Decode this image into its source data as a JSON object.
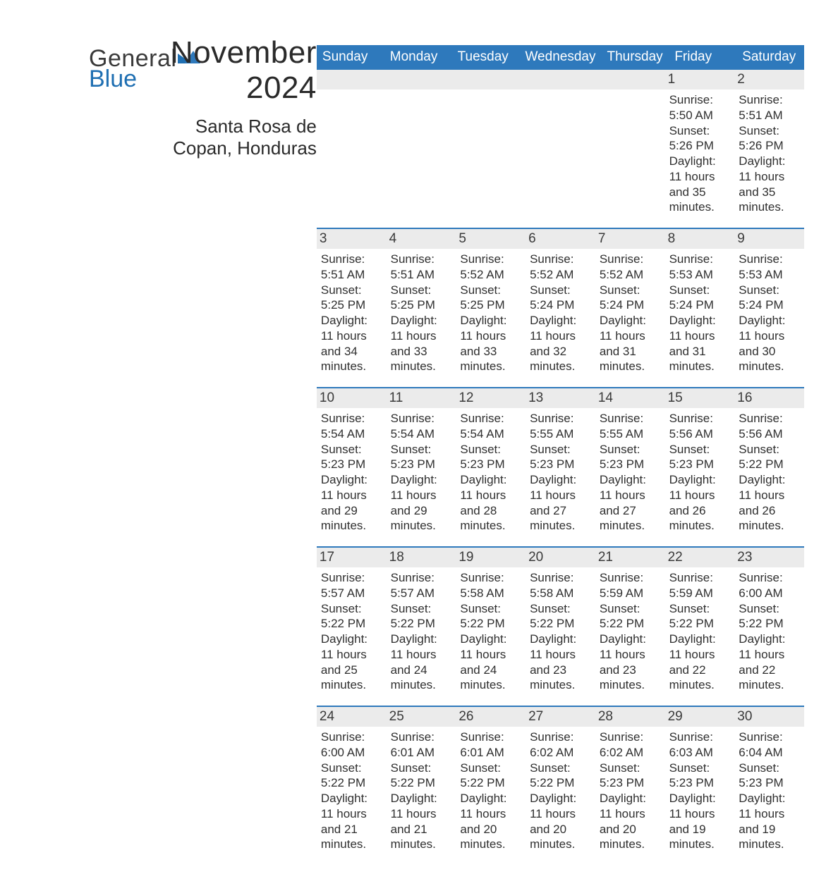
{
  "logo": {
    "text1": "General",
    "text2": "Blue",
    "accent_color": "#1f6fb2",
    "text_color": "#3a3a3a"
  },
  "title": "November 2024",
  "location": "Santa Rosa de Copan, Honduras",
  "colors": {
    "header_bg": "#2e79bc",
    "header_text": "#ffffff",
    "daynum_bg": "#ebebeb",
    "row_border": "#2e79bc",
    "body_text": "#2f2f2f",
    "page_bg": "#ffffff"
  },
  "typography": {
    "title_fontsize": 44,
    "location_fontsize": 26,
    "dow_fontsize": 19,
    "daynum_fontsize": 19,
    "body_fontsize": 17
  },
  "day_labels": [
    "Sunday",
    "Monday",
    "Tuesday",
    "Wednesday",
    "Thursday",
    "Friday",
    "Saturday"
  ],
  "weeks": [
    [
      {
        "n": "",
        "sunrise": "",
        "sunset": "",
        "daylight": ""
      },
      {
        "n": "",
        "sunrise": "",
        "sunset": "",
        "daylight": ""
      },
      {
        "n": "",
        "sunrise": "",
        "sunset": "",
        "daylight": ""
      },
      {
        "n": "",
        "sunrise": "",
        "sunset": "",
        "daylight": ""
      },
      {
        "n": "",
        "sunrise": "",
        "sunset": "",
        "daylight": ""
      },
      {
        "n": "1",
        "sunrise": "Sunrise: 5:50 AM",
        "sunset": "Sunset: 5:26 PM",
        "daylight": "Daylight: 11 hours and 35 minutes."
      },
      {
        "n": "2",
        "sunrise": "Sunrise: 5:51 AM",
        "sunset": "Sunset: 5:26 PM",
        "daylight": "Daylight: 11 hours and 35 minutes."
      }
    ],
    [
      {
        "n": "3",
        "sunrise": "Sunrise: 5:51 AM",
        "sunset": "Sunset: 5:25 PM",
        "daylight": "Daylight: 11 hours and 34 minutes."
      },
      {
        "n": "4",
        "sunrise": "Sunrise: 5:51 AM",
        "sunset": "Sunset: 5:25 PM",
        "daylight": "Daylight: 11 hours and 33 minutes."
      },
      {
        "n": "5",
        "sunrise": "Sunrise: 5:52 AM",
        "sunset": "Sunset: 5:25 PM",
        "daylight": "Daylight: 11 hours and 33 minutes."
      },
      {
        "n": "6",
        "sunrise": "Sunrise: 5:52 AM",
        "sunset": "Sunset: 5:24 PM",
        "daylight": "Daylight: 11 hours and 32 minutes."
      },
      {
        "n": "7",
        "sunrise": "Sunrise: 5:52 AM",
        "sunset": "Sunset: 5:24 PM",
        "daylight": "Daylight: 11 hours and 31 minutes."
      },
      {
        "n": "8",
        "sunrise": "Sunrise: 5:53 AM",
        "sunset": "Sunset: 5:24 PM",
        "daylight": "Daylight: 11 hours and 31 minutes."
      },
      {
        "n": "9",
        "sunrise": "Sunrise: 5:53 AM",
        "sunset": "Sunset: 5:24 PM",
        "daylight": "Daylight: 11 hours and 30 minutes."
      }
    ],
    [
      {
        "n": "10",
        "sunrise": "Sunrise: 5:54 AM",
        "sunset": "Sunset: 5:23 PM",
        "daylight": "Daylight: 11 hours and 29 minutes."
      },
      {
        "n": "11",
        "sunrise": "Sunrise: 5:54 AM",
        "sunset": "Sunset: 5:23 PM",
        "daylight": "Daylight: 11 hours and 29 minutes."
      },
      {
        "n": "12",
        "sunrise": "Sunrise: 5:54 AM",
        "sunset": "Sunset: 5:23 PM",
        "daylight": "Daylight: 11 hours and 28 minutes."
      },
      {
        "n": "13",
        "sunrise": "Sunrise: 5:55 AM",
        "sunset": "Sunset: 5:23 PM",
        "daylight": "Daylight: 11 hours and 27 minutes."
      },
      {
        "n": "14",
        "sunrise": "Sunrise: 5:55 AM",
        "sunset": "Sunset: 5:23 PM",
        "daylight": "Daylight: 11 hours and 27 minutes."
      },
      {
        "n": "15",
        "sunrise": "Sunrise: 5:56 AM",
        "sunset": "Sunset: 5:23 PM",
        "daylight": "Daylight: 11 hours and 26 minutes."
      },
      {
        "n": "16",
        "sunrise": "Sunrise: 5:56 AM",
        "sunset": "Sunset: 5:22 PM",
        "daylight": "Daylight: 11 hours and 26 minutes."
      }
    ],
    [
      {
        "n": "17",
        "sunrise": "Sunrise: 5:57 AM",
        "sunset": "Sunset: 5:22 PM",
        "daylight": "Daylight: 11 hours and 25 minutes."
      },
      {
        "n": "18",
        "sunrise": "Sunrise: 5:57 AM",
        "sunset": "Sunset: 5:22 PM",
        "daylight": "Daylight: 11 hours and 24 minutes."
      },
      {
        "n": "19",
        "sunrise": "Sunrise: 5:58 AM",
        "sunset": "Sunset: 5:22 PM",
        "daylight": "Daylight: 11 hours and 24 minutes."
      },
      {
        "n": "20",
        "sunrise": "Sunrise: 5:58 AM",
        "sunset": "Sunset: 5:22 PM",
        "daylight": "Daylight: 11 hours and 23 minutes."
      },
      {
        "n": "21",
        "sunrise": "Sunrise: 5:59 AM",
        "sunset": "Sunset: 5:22 PM",
        "daylight": "Daylight: 11 hours and 23 minutes."
      },
      {
        "n": "22",
        "sunrise": "Sunrise: 5:59 AM",
        "sunset": "Sunset: 5:22 PM",
        "daylight": "Daylight: 11 hours and 22 minutes."
      },
      {
        "n": "23",
        "sunrise": "Sunrise: 6:00 AM",
        "sunset": "Sunset: 5:22 PM",
        "daylight": "Daylight: 11 hours and 22 minutes."
      }
    ],
    [
      {
        "n": "24",
        "sunrise": "Sunrise: 6:00 AM",
        "sunset": "Sunset: 5:22 PM",
        "daylight": "Daylight: 11 hours and 21 minutes."
      },
      {
        "n": "25",
        "sunrise": "Sunrise: 6:01 AM",
        "sunset": "Sunset: 5:22 PM",
        "daylight": "Daylight: 11 hours and 21 minutes."
      },
      {
        "n": "26",
        "sunrise": "Sunrise: 6:01 AM",
        "sunset": "Sunset: 5:22 PM",
        "daylight": "Daylight: 11 hours and 20 minutes."
      },
      {
        "n": "27",
        "sunrise": "Sunrise: 6:02 AM",
        "sunset": "Sunset: 5:22 PM",
        "daylight": "Daylight: 11 hours and 20 minutes."
      },
      {
        "n": "28",
        "sunrise": "Sunrise: 6:02 AM",
        "sunset": "Sunset: 5:23 PM",
        "daylight": "Daylight: 11 hours and 20 minutes."
      },
      {
        "n": "29",
        "sunrise": "Sunrise: 6:03 AM",
        "sunset": "Sunset: 5:23 PM",
        "daylight": "Daylight: 11 hours and 19 minutes."
      },
      {
        "n": "30",
        "sunrise": "Sunrise: 6:04 AM",
        "sunset": "Sunset: 5:23 PM",
        "daylight": "Daylight: 11 hours and 19 minutes."
      }
    ]
  ]
}
